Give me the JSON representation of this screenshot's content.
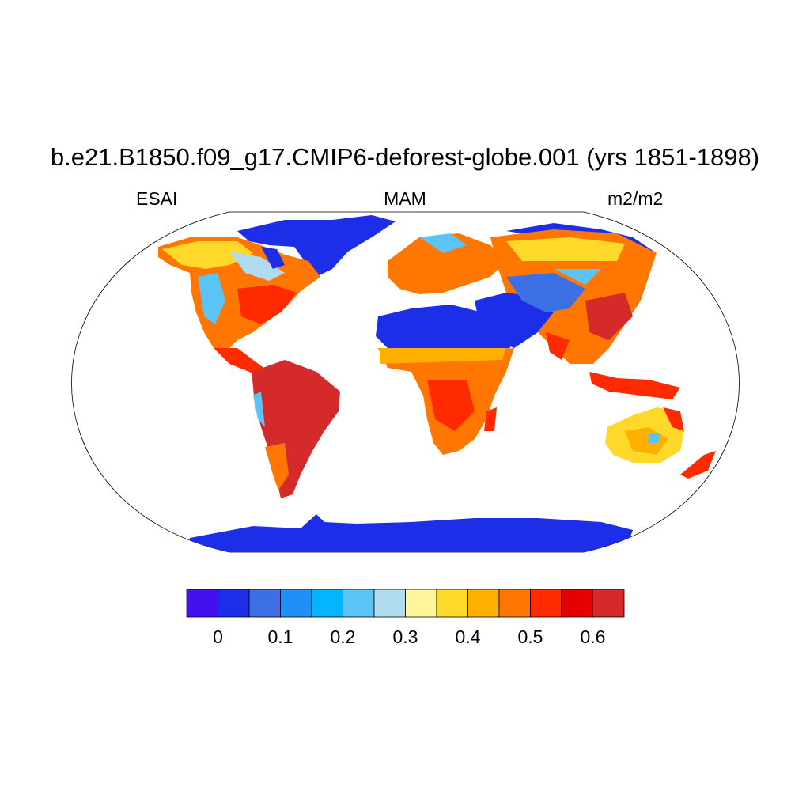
{
  "header": {
    "title": "b.e21.B1850.f09_g17.CMIP6-deforest-globe.001 (yrs 1851-1898)",
    "left_label": "ESAI",
    "center_label": "MAM",
    "right_label": "m2/m2"
  },
  "map": {
    "projection": "Robinson",
    "field": "ESAI",
    "season": "MAM",
    "units": "m2/m2"
  },
  "colorbar": {
    "colors": [
      "#4411ee",
      "#1c2ee8",
      "#3d6fe4",
      "#2090f8",
      "#04b4ff",
      "#5bc4f4",
      "#b0dcf0",
      "#fff599",
      "#ffd929",
      "#ffaf00",
      "#ff7600",
      "#ff2a00",
      "#e40000",
      "#d52a2a"
    ],
    "tick_labels": [
      "0",
      "0.1",
      "0.2",
      "0.3",
      "0.4",
      "0.5",
      "0.6"
    ],
    "tick_values": [
      0,
      0.1,
      0.2,
      0.3,
      0.4,
      0.5,
      0.6
    ]
  }
}
